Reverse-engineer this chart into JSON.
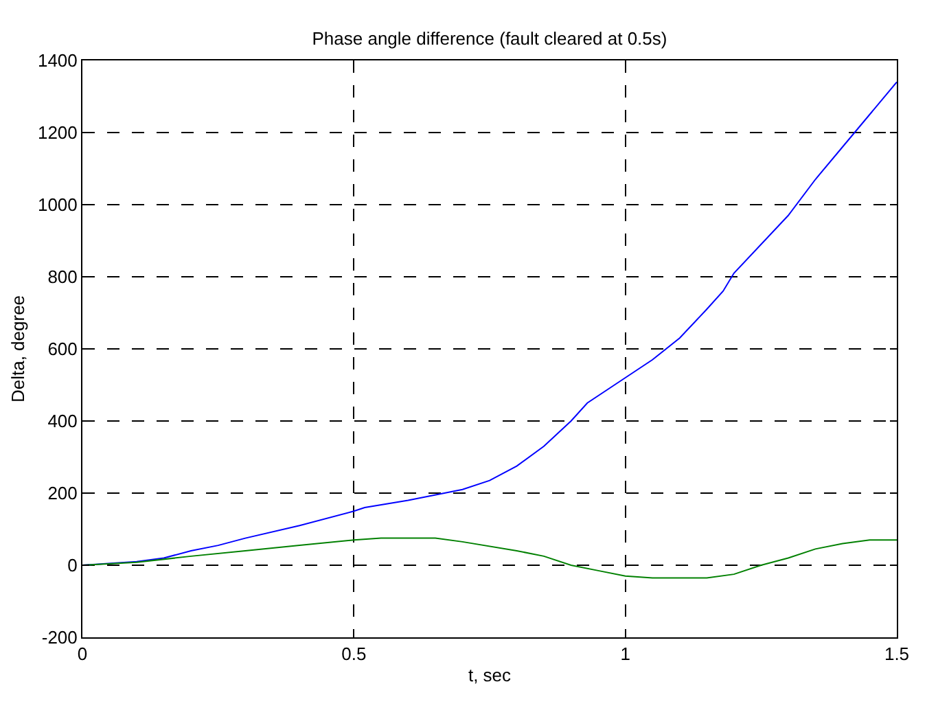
{
  "chart_data": {
    "type": "line",
    "title": "Phase angle difference (fault cleared at 0.5s)",
    "xlabel": "t, sec",
    "ylabel": "Delta, degree",
    "xlim": [
      0,
      1.5
    ],
    "xticks": [
      0,
      0.5,
      1,
      1.5
    ],
    "ylim": [
      -200,
      1400
    ],
    "yticks": [
      -200,
      0,
      200,
      400,
      600,
      800,
      1000,
      1200,
      1400
    ],
    "grid": true,
    "line_style": "solid",
    "series": [
      {
        "color": "#0000ff",
        "x": [
          0,
          0.1,
          0.15,
          0.2,
          0.25,
          0.3,
          0.4,
          0.5,
          0.52,
          0.6,
          0.7,
          0.75,
          0.8,
          0.85,
          0.9,
          0.93,
          0.97,
          1.0,
          1.05,
          1.1,
          1.15,
          1.18,
          1.2,
          1.3,
          1.35,
          1.4,
          1.45,
          1.5
        ],
        "values": [
          0,
          10,
          20,
          40,
          55,
          75,
          110,
          150,
          160,
          180,
          210,
          235,
          275,
          330,
          400,
          450,
          490,
          520,
          570,
          630,
          710,
          760,
          810,
          970,
          1070,
          1160,
          1250,
          1340
        ]
      },
      {
        "color": "#008000",
        "x": [
          0,
          0.1,
          0.2,
          0.3,
          0.4,
          0.5,
          0.55,
          0.65,
          0.7,
          0.8,
          0.85,
          0.9,
          0.95,
          1.0,
          1.05,
          1.15,
          1.2,
          1.25,
          1.3,
          1.35,
          1.4,
          1.45,
          1.5
        ],
        "values": [
          0,
          8,
          25,
          40,
          55,
          70,
          75,
          75,
          65,
          40,
          25,
          0,
          -15,
          -30,
          -35,
          -35,
          -25,
          0,
          20,
          45,
          60,
          70,
          70
        ]
      }
    ]
  }
}
